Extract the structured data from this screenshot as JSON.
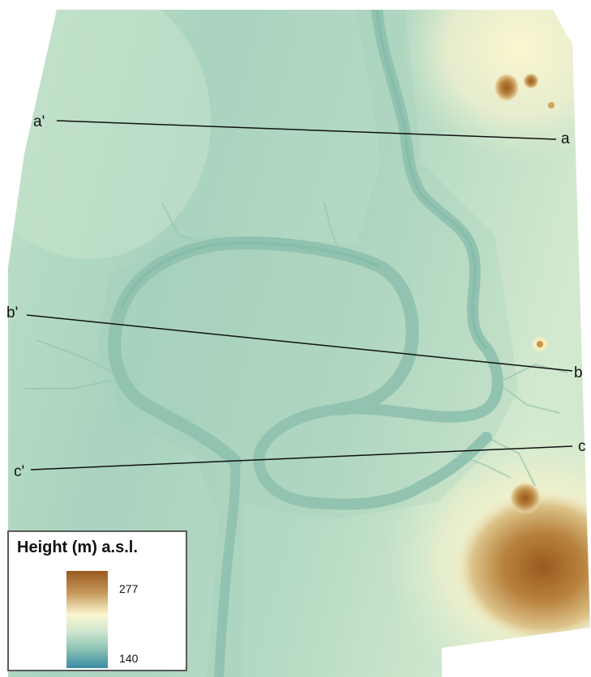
{
  "legend": {
    "title": "Height (m) a.s.l.",
    "max": "277",
    "min": "140",
    "ramp_colors": [
      "#9a5a1e",
      "#c4965a",
      "#fbf6cf",
      "#cfe6cf",
      "#8ec4b4",
      "#3c8ba4"
    ]
  },
  "profiles": [
    {
      "start": "a'",
      "end": "a"
    },
    {
      "start": "b'",
      "end": "b"
    },
    {
      "start": "c'",
      "end": "c"
    }
  ],
  "colors": {
    "floodplain": "#a7d1bb",
    "channel": "#8cc0ae",
    "upland": "#f7f2cf",
    "highland": "#b27a3a",
    "profile_line": "#111111"
  }
}
